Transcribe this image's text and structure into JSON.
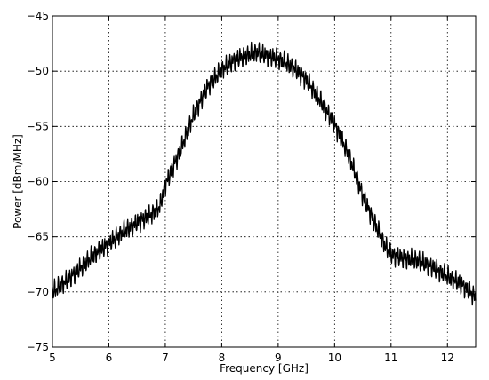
{
  "chart_data": {
    "type": "line",
    "xlabel": "Frequency [GHz]",
    "ylabel": "Power [dBm/MHz]",
    "xlim": [
      5,
      12.5
    ],
    "ylim": [
      -75,
      -45
    ],
    "xticks": [
      5,
      6,
      7,
      8,
      9,
      10,
      11,
      12
    ],
    "yticks": [
      -75,
      -70,
      -65,
      -60,
      -55,
      -50,
      -45
    ],
    "xtick_labels": [
      "5",
      "6",
      "7",
      "8",
      "9",
      "10",
      "11",
      "12"
    ],
    "ytick_labels": [
      "−75",
      "−70",
      "−65",
      "−60",
      "−55",
      "−50",
      "−45"
    ],
    "grid": true,
    "series": [
      {
        "color": "#000000",
        "x": [
          5.0,
          5.25,
          5.5,
          5.75,
          6.0,
          6.25,
          6.5,
          6.75,
          6.9,
          7.0,
          7.25,
          7.5,
          7.75,
          8.0,
          8.25,
          8.5,
          8.65,
          8.75,
          9.0,
          9.25,
          9.5,
          9.75,
          10.0,
          10.25,
          10.5,
          10.75,
          10.9,
          11.0,
          11.25,
          11.5,
          11.75,
          12.0,
          12.25,
          12.5
        ],
        "y": [
          -70.0,
          -69.0,
          -67.8,
          -66.6,
          -65.6,
          -64.6,
          -63.7,
          -63.0,
          -62.3,
          -60.3,
          -57.4,
          -54.0,
          -51.4,
          -49.9,
          -48.9,
          -48.5,
          -48.3,
          -48.5,
          -48.9,
          -49.6,
          -50.8,
          -52.7,
          -54.8,
          -57.6,
          -61.3,
          -64.2,
          -65.9,
          -66.6,
          -67.0,
          -67.2,
          -67.8,
          -68.6,
          -69.3,
          -70.5
        ]
      }
    ]
  }
}
